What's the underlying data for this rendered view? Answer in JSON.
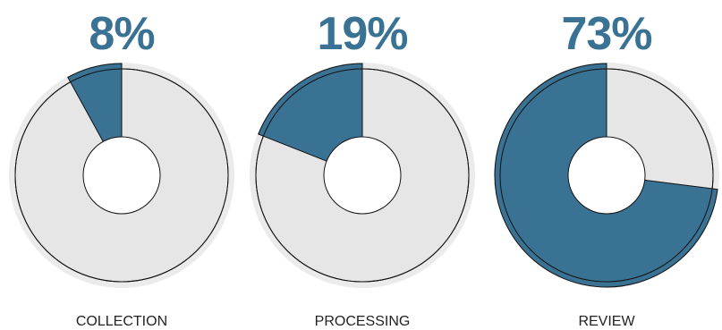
{
  "chart_data": {
    "type": "pie",
    "subtype": "donut-gauges",
    "colors": {
      "accent": "#3a7294",
      "track": "#e6e6e6",
      "track_outer": "#ebebeb",
      "outline": "#111111",
      "text": "#222222"
    },
    "items": [
      {
        "label": "COLLECTION",
        "value": 8,
        "value_label": "8%"
      },
      {
        "label": "PROCESSING",
        "value": 19,
        "value_label": "19%"
      },
      {
        "label": "REVIEW",
        "value": 73,
        "value_label": "73%"
      }
    ]
  }
}
